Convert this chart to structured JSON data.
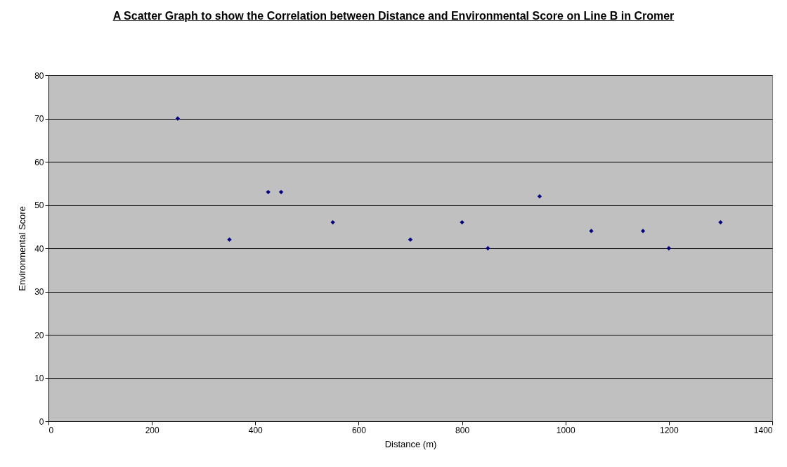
{
  "chart_data": {
    "type": "scatter",
    "title": "A Scatter Graph to show the Correlation between Distance and Environmental Score on Line B in Cromer",
    "xlabel": "Distance (m)",
    "ylabel": "Environmental Score",
    "x": [
      250,
      350,
      425,
      450,
      550,
      700,
      800,
      850,
      950,
      1050,
      1150,
      1200,
      1300
    ],
    "series": [
      {
        "color": "#000080",
        "values": [
          70,
          42,
          53,
          53,
          46,
          42,
          46,
          40,
          52,
          44,
          44,
          40,
          46
        ]
      }
    ],
    "xlim": [
      0,
      1400
    ],
    "xticks": [
      0,
      200,
      400,
      600,
      800,
      1000,
      1200,
      1400
    ],
    "ylim": [
      0,
      80
    ],
    "yticks": [
      0,
      10,
      20,
      30,
      40,
      50,
      60,
      70,
      80
    ],
    "grid": "y",
    "marker": "diamond"
  }
}
